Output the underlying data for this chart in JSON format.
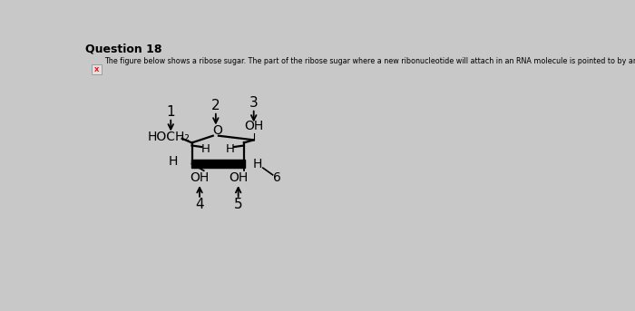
{
  "title": "Question 18",
  "subtitle": "The figure below shows a ribose sugar. The part of the ribose sugar where a new ribonucleotide will attach in an RNA molecule is pointed to by arrow ___.",
  "bg_color": "#c8c8c8",
  "text_color": "#000000",
  "label_1": "1",
  "label_2": "2",
  "label_3": "3",
  "label_4": "4",
  "label_5": "5",
  "label_6": "6",
  "HOCH2": "HOCH₂",
  "O_label": "O",
  "OH_top": "OH",
  "H_left_in": "H",
  "H_right_in": "H",
  "H_left_out": "H",
  "H_right_out": "H",
  "OH_bot_left": "OH",
  "OH_bot_right": "OH"
}
